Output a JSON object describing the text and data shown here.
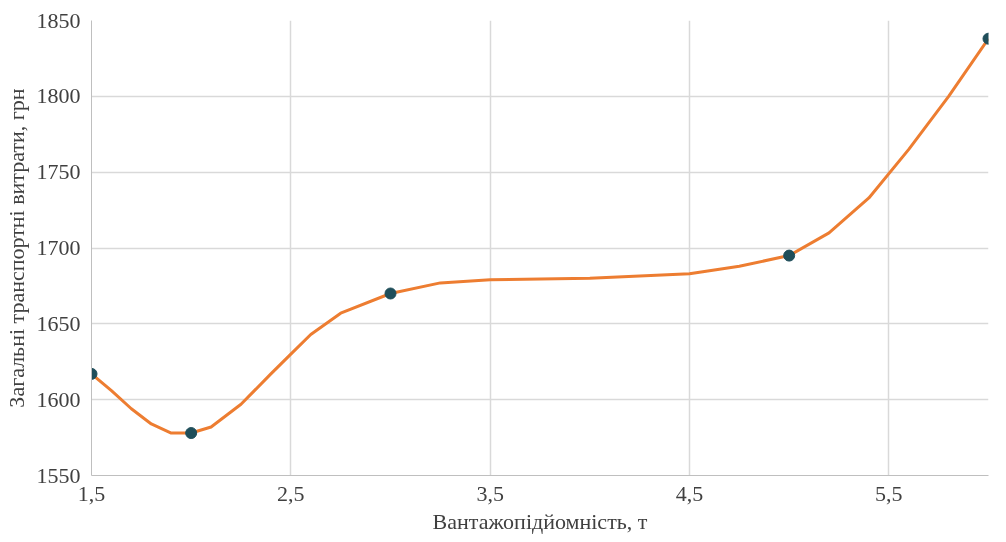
{
  "chart_data": {
    "type": "line",
    "xlabel": "Вантажопідйомність, т",
    "ylabel": "Загальні транспортні витрати, грн",
    "series": [
      {
        "marker": "none",
        "color": "#ed7d31",
        "x": [
          1.5,
          1.6,
          1.7,
          1.8,
          1.9,
          2.0,
          2.1,
          2.25,
          2.4,
          2.5,
          2.6,
          2.75,
          3.0,
          3.25,
          3.5,
          4.0,
          4.5,
          4.75,
          5.0,
          5.2,
          5.4,
          5.6,
          5.8,
          6.0
        ],
        "values": [
          1617,
          1606,
          1594,
          1584,
          1578,
          1578,
          1582,
          1597,
          1617,
          1630,
          1643,
          1657,
          1670,
          1677,
          1679,
          1680,
          1683,
          1688,
          1695,
          1710,
          1733,
          1765,
          1800,
          1838
        ]
      },
      {
        "type": "scatter",
        "marker": "circle",
        "color": "#1f4e5a",
        "x": [
          1.5,
          2,
          3,
          5,
          6
        ],
        "values": [
          1617,
          1578,
          1670,
          1695,
          1838
        ]
      }
    ],
    "xlim": [
      1.5,
      6
    ],
    "xticks": [
      {
        "value": 1.5,
        "label": "1,5"
      },
      {
        "value": 2.5,
        "label": "2,5"
      },
      {
        "value": 3.5,
        "label": "3,5"
      },
      {
        "value": 4.5,
        "label": "4,5"
      },
      {
        "value": 5.5,
        "label": "5,5"
      }
    ],
    "ylim": [
      1550,
      1850
    ],
    "yticks": [
      1550,
      1600,
      1650,
      1700,
      1750,
      1800,
      1850
    ],
    "grid": true,
    "line_style": "solid"
  }
}
